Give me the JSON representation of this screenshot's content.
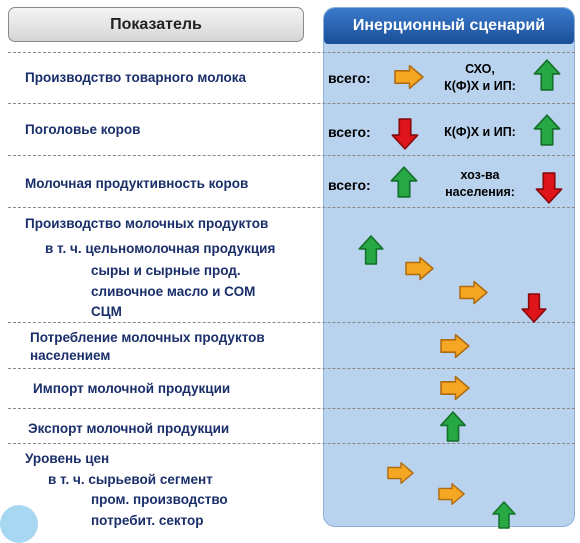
{
  "header": {
    "indicator": "Показатель",
    "scenario": "Инерционный сценарий"
  },
  "rows": {
    "milk_production": "Производство товарного молока",
    "cows": "Поголовье коров",
    "productivity": "Молочная продуктивность коров",
    "dairy_products": "Производство молочных продуктов",
    "whole_milk": "в т. ч. цельномолочная продукция",
    "cheese": "сыры и сырные прод.",
    "butter": "сливочное масло и СОМ",
    "scm": "СЦМ",
    "consumption_1": "Потребление молочных продуктов",
    "consumption_2": "населением",
    "import": "Импорт молочной продукции",
    "export": "Экспорт молочной продукции",
    "prices": "Уровень цен",
    "raw_segment": "в т. ч. сырьевой сегмент",
    "industrial": "пром. производство",
    "consumer": "потребит. сектор"
  },
  "panel": {
    "total": "всего:",
    "sxo_1": "СХО,",
    "sxo_2": "К(Ф)Х и ИП:",
    "kfh": "К(Ф)Х и ИП:",
    "households_1": "хоз-ва",
    "households_2": "населения:"
  },
  "icons": [
    "arrow-right-icon",
    "arrow-up-icon",
    "arrow-down-icon"
  ],
  "colors": {
    "arrow_right": "#f5a623",
    "arrow_up": "#27a844",
    "arrow_down": "#e0151b",
    "panel_bg": "#b9d3ef",
    "header_blue": "#1f5aa6"
  }
}
